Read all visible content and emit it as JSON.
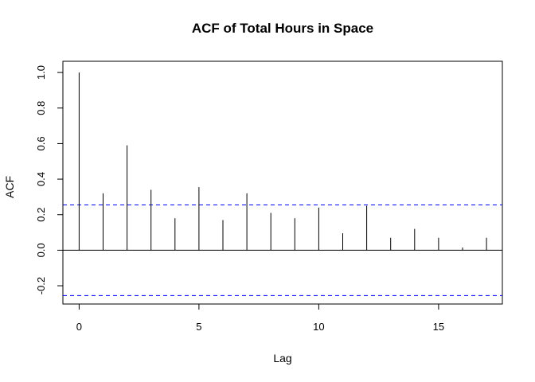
{
  "chart_data": {
    "type": "bar",
    "title": "ACF of Total Hours in Space",
    "xlabel": "Lag",
    "ylabel": "ACF",
    "lags": [
      0,
      1,
      2,
      3,
      4,
      5,
      6,
      7,
      8,
      9,
      10,
      11,
      12,
      13,
      14,
      15,
      16,
      17
    ],
    "values": [
      1.0,
      0.32,
      0.59,
      0.34,
      0.18,
      0.355,
      0.17,
      0.32,
      0.21,
      0.18,
      0.24,
      0.095,
      0.25,
      0.07,
      0.12,
      0.07,
      0.015,
      0.07
    ],
    "confidence_bound": 0.255,
    "xlim": [
      -0.6,
      17.6
    ],
    "ylim": [
      -0.3,
      1.05
    ],
    "x_ticks": [
      0,
      5,
      10,
      15
    ],
    "x_tick_labels": [
      "0",
      "5",
      "10",
      "15"
    ],
    "y_ticks": [
      -0.2,
      0.0,
      0.2,
      0.4,
      0.6,
      0.8,
      1.0
    ],
    "y_tick_labels": [
      "-0.2",
      "0.0",
      "0.2",
      "0.4",
      "0.6",
      "0.8",
      "1.0"
    ],
    "colors": {
      "spikes": "#000000",
      "confidence": "#0000ff",
      "zero_line": "#000000"
    },
    "grid": false,
    "legend": "none"
  }
}
